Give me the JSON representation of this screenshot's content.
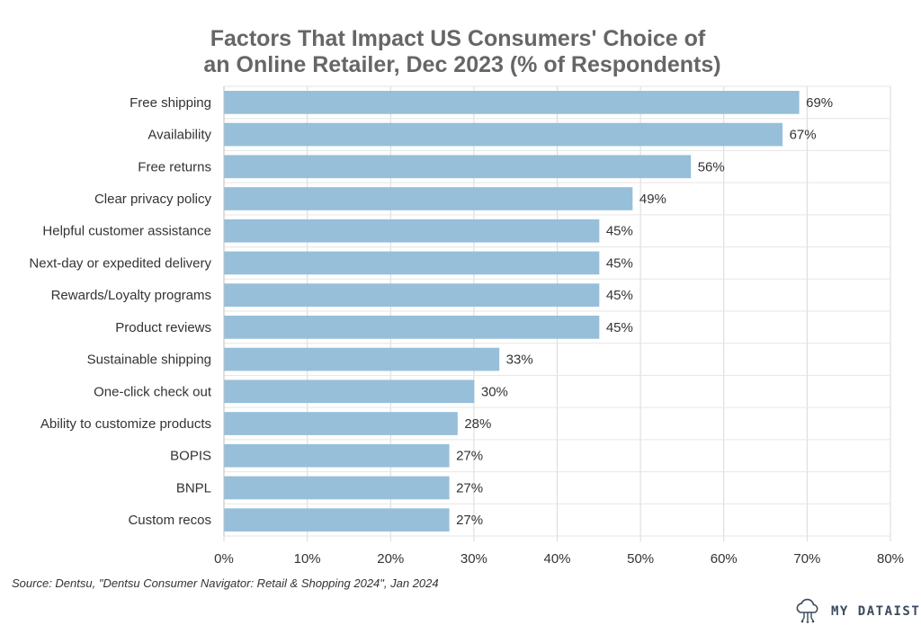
{
  "chart_data": {
    "type": "bar",
    "orientation": "horizontal",
    "title_lines": [
      "Factors That Impact US Consumers' Choice of",
      "an Online Retailer, Dec 2023 (% of Respondents)"
    ],
    "categories": [
      "Free shipping",
      "Availability",
      "Free returns",
      "Clear privacy policy",
      "Helpful customer assistance",
      "Next-day or expedited delivery",
      "Rewards/Loyalty programs",
      "Product reviews",
      "Sustainable shipping",
      "One-click check out",
      "Ability to customize products",
      "BOPIS",
      "BNPL",
      "Custom recos"
    ],
    "values": [
      69,
      67,
      56,
      49,
      45,
      45,
      45,
      45,
      33,
      30,
      28,
      27,
      27,
      27
    ],
    "value_labels": [
      "69%",
      "67%",
      "56%",
      "49%",
      "45%",
      "45%",
      "45%",
      "45%",
      "33%",
      "30%",
      "28%",
      "27%",
      "27%",
      "27%"
    ],
    "xlim": [
      0,
      80
    ],
    "x_ticks": [
      0,
      10,
      20,
      30,
      40,
      50,
      60,
      70,
      80
    ],
    "x_tick_labels": [
      "0%",
      "10%",
      "20%",
      "30%",
      "40%",
      "50%",
      "60%",
      "70%",
      "80%"
    ],
    "grid": true,
    "bar_color": "#97bfd9"
  },
  "source_text": "Source: Dentsu, \"Dentsu Consumer Navigator: Retail & Shopping 2024\", Jan 2024",
  "brand": {
    "name": "MY DATAIST",
    "icon": "cloud-circuit-icon",
    "color": "#3a4a5c"
  }
}
